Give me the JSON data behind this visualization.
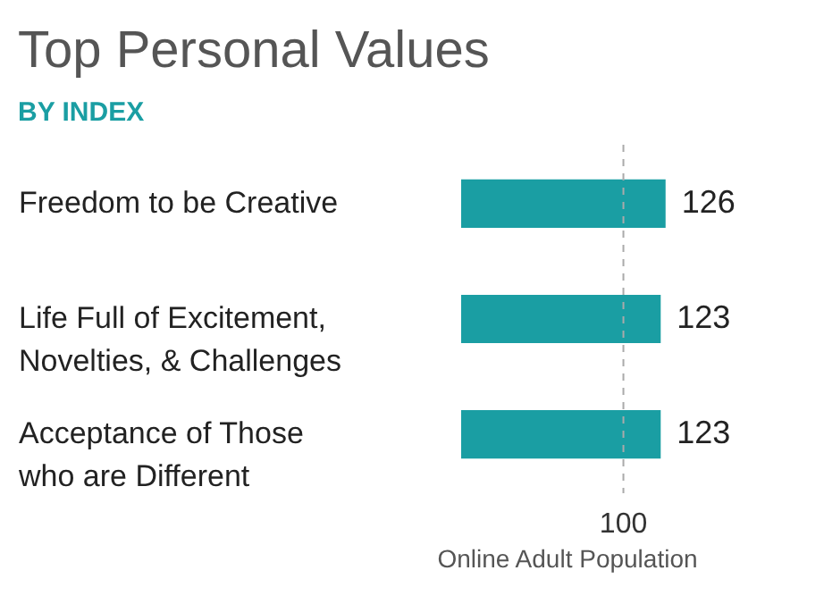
{
  "chart_data": {
    "type": "bar",
    "orientation": "horizontal",
    "title": "Top Personal Values",
    "subtitle": "BY INDEX",
    "xlabel": "Online Adult Population",
    "categories": [
      "Freedom to be Creative",
      "Life Full of Excitement, Novelties, & Challenges",
      "Acceptance of Those who are Different"
    ],
    "values": [
      126,
      123,
      123
    ],
    "color": "#1a9ea3",
    "data_labels": true,
    "ref_lines": [
      {
        "axis": "x",
        "value": 100,
        "label": "100",
        "color": "#aaaaaa",
        "line_style": "dashed"
      }
    ]
  }
}
